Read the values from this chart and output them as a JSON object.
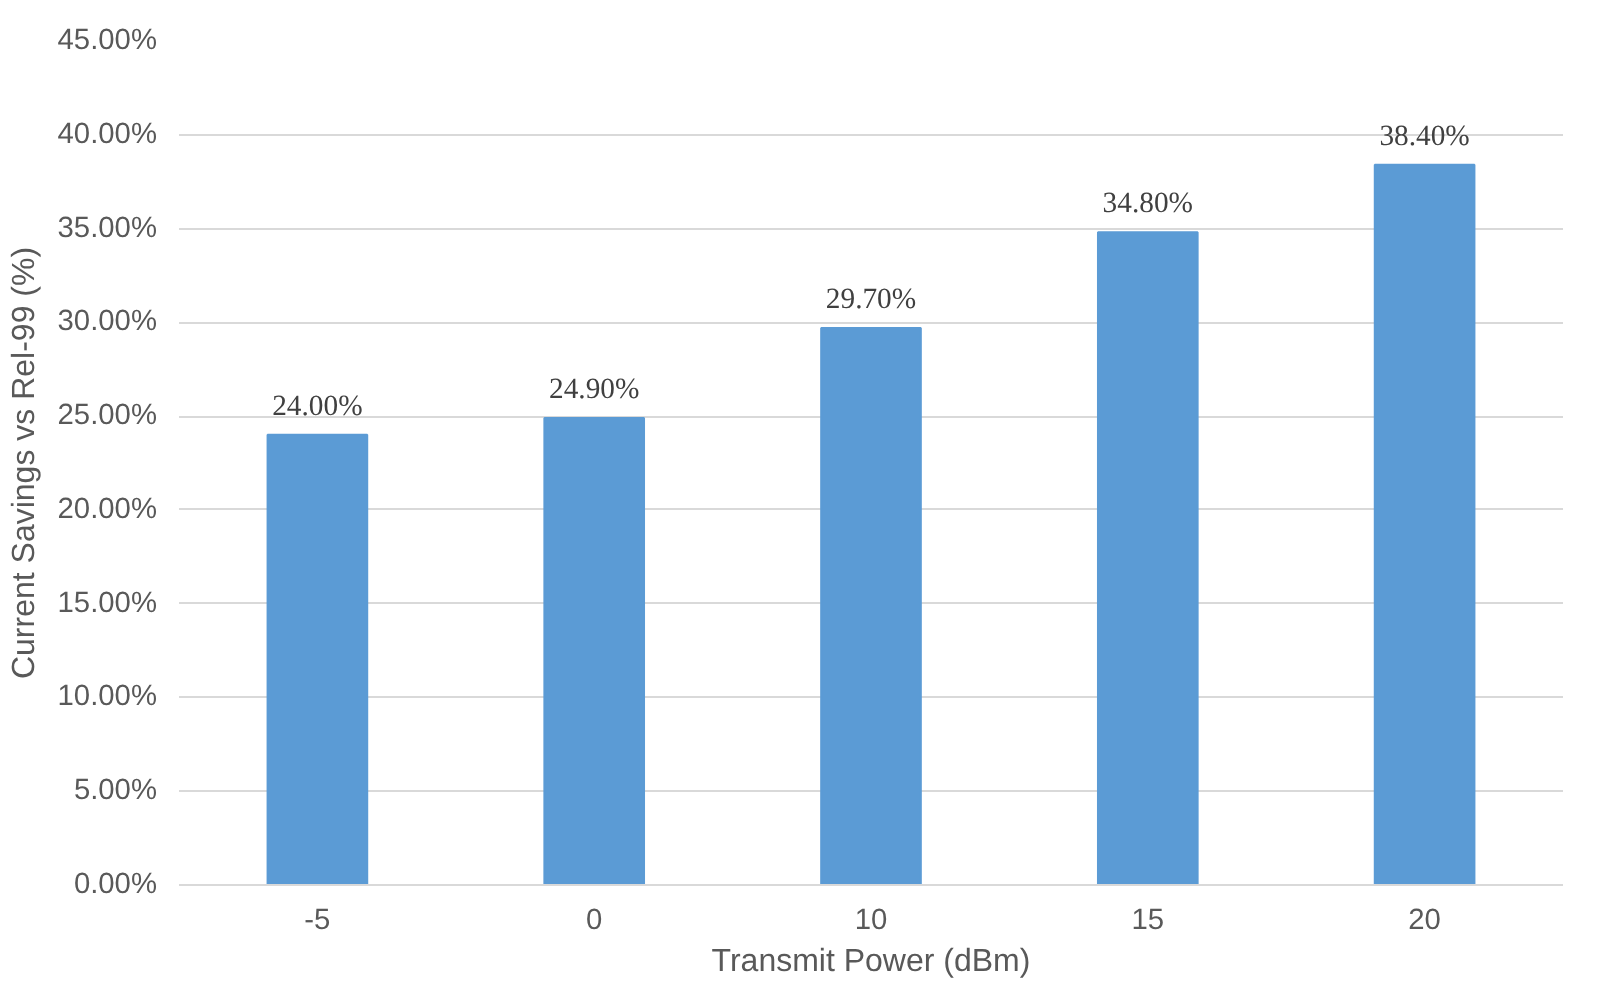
{
  "chart_data": {
    "type": "bar",
    "xlabel": "Transmit Power (dBm)",
    "ylabel": "Current Savings vs Rel-99 (%)",
    "categories": [
      "-5",
      "0",
      "10",
      "15",
      "20"
    ],
    "values": [
      24.0,
      24.9,
      29.7,
      34.8,
      38.4
    ],
    "color": "#5b9bd5",
    "value_labels": [
      "24.00%",
      "24.90%",
      "29.70%",
      "34.80%",
      "38.40%"
    ],
    "ylim": [
      0,
      45
    ],
    "yticks": [
      {
        "value": 0,
        "label": "0.00%"
      },
      {
        "value": 5,
        "label": "5.00%"
      },
      {
        "value": 10,
        "label": "10.00%"
      },
      {
        "value": 15,
        "label": "15.00%"
      },
      {
        "value": 20,
        "label": "20.00%"
      },
      {
        "value": 25,
        "label": "25.00%"
      },
      {
        "value": 30,
        "label": "30.00%"
      },
      {
        "value": 35,
        "label": "35.00%"
      },
      {
        "value": 40,
        "label": "40.00%"
      },
      {
        "value": 45,
        "label": "45.00%"
      }
    ],
    "grid": "y"
  }
}
